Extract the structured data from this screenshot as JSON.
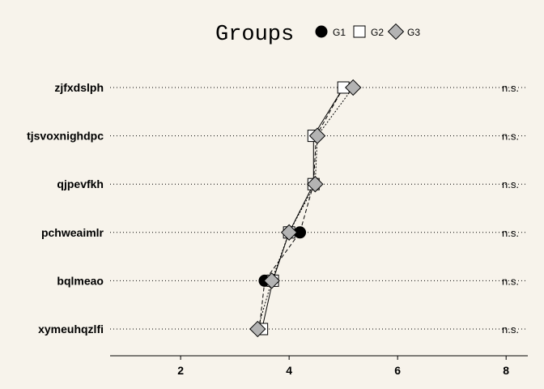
{
  "chart_data": {
    "type": "scatter",
    "title": "",
    "xlabel": "",
    "ylabel": "",
    "xlim": [
      0.7,
      8.4
    ],
    "x_ticks": [
      2,
      4,
      6,
      8
    ],
    "grid": "dotted horizontal lines per category",
    "legend": {
      "title": "Groups",
      "placement": "top-center",
      "entries": [
        "G1",
        "G2",
        "G3"
      ]
    },
    "categories": [
      "zjfxdslph",
      "tjsvoxnighdpc",
      "qjpevfkh",
      "pchweaimlr",
      "bqlmeao",
      "xymeuhqzlfi"
    ],
    "significance": [
      "n.s.",
      "n.s.",
      "n.s.",
      "n.s.",
      "n.s.",
      "n.s."
    ],
    "series": [
      {
        "name": "G1",
        "marker": "circle",
        "color": "#000000",
        "values": [
          5.0,
          4.5,
          4.45,
          4.2,
          3.55,
          3.45
        ]
      },
      {
        "name": "G2",
        "marker": "square",
        "color": "#ffffff",
        "values": [
          5.0,
          4.45,
          4.45,
          4.0,
          3.7,
          3.5
        ]
      },
      {
        "name": "G3",
        "marker": "diamond",
        "color": "#b3b3b3",
        "values": [
          5.18,
          4.52,
          4.48,
          4.0,
          3.68,
          3.42
        ]
      }
    ]
  }
}
